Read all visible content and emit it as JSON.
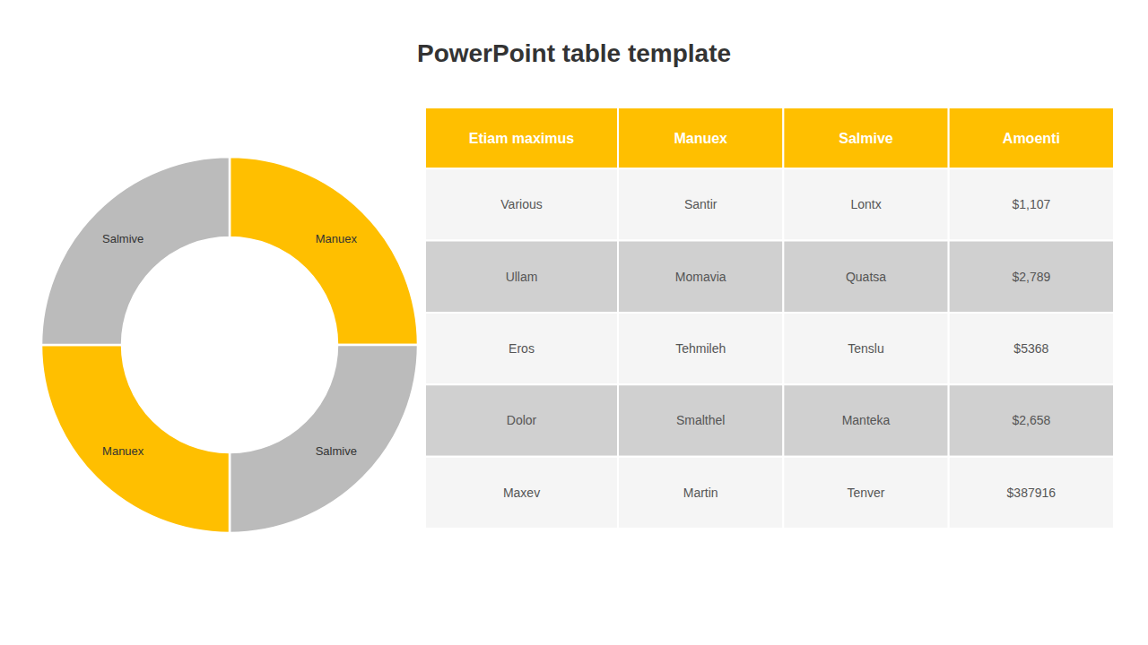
{
  "chart_data": [
    {
      "type": "pie",
      "title": "PowerPoint table template",
      "categories": [
        "Manuex",
        "Salmive",
        "Manuex",
        "Salmive"
      ],
      "values": [
        25,
        25,
        25,
        25
      ],
      "colors": [
        "#FFBF00",
        "#BBBBBB",
        "#FFBF00",
        "#BBBBBB"
      ]
    },
    {
      "type": "table",
      "columns": [
        "Etiam maximus",
        "Manuex",
        "Salmive",
        "Amoenti"
      ],
      "rows": [
        [
          "Various",
          "Santir",
          "Lontx",
          "$1,107"
        ],
        [
          "Ullam",
          "Momavia",
          "Quatsa",
          "$2,789"
        ],
        [
          "Eros",
          "Tehmileh",
          "Tenslu",
          "$5368"
        ],
        [
          "Dolor",
          "Smalthel",
          "Manteka",
          "$2,658"
        ],
        [
          "Maxev",
          "Martin",
          "Tenver",
          "$387916"
        ]
      ],
      "color": "#FFBF00"
    }
  ]
}
